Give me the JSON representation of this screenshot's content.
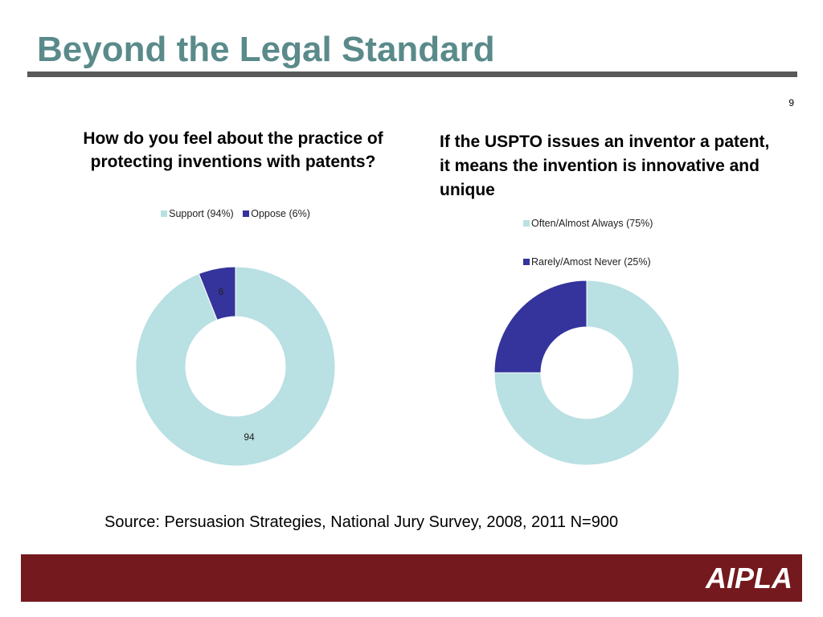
{
  "slide": {
    "title": "Beyond the Legal Standard",
    "page_number": "9",
    "source": "Source: Persuasion Strategies, National Jury Survey, 2008, 2011 N=900",
    "logo": "AIPLA"
  },
  "colors": {
    "title": "#5a8a8a",
    "light_series": "#b9e0e3",
    "dark_series": "#34349c",
    "footer": "#74191d"
  },
  "chart_data": [
    {
      "type": "pie",
      "variant": "doughnut",
      "title": "How do you feel about the practice of protecting inventions with patents?",
      "categories": [
        "Support (94%)",
        "Oppose (6%)"
      ],
      "values": [
        94,
        6
      ],
      "data_labels": [
        "94",
        "6"
      ],
      "colors": [
        "#b9e0e3",
        "#34349c"
      ],
      "legend": "top"
    },
    {
      "type": "pie",
      "variant": "doughnut",
      "title": "If the USPTO issues an inventor a patent, it means the invention is innovative and unique",
      "categories": [
        "Often/Almost Always (75%)",
        "Rarely/Amost Never (25%)"
      ],
      "values": [
        75,
        25
      ],
      "data_labels": [],
      "colors": [
        "#b9e0e3",
        "#34349c"
      ],
      "legend": "top"
    }
  ]
}
